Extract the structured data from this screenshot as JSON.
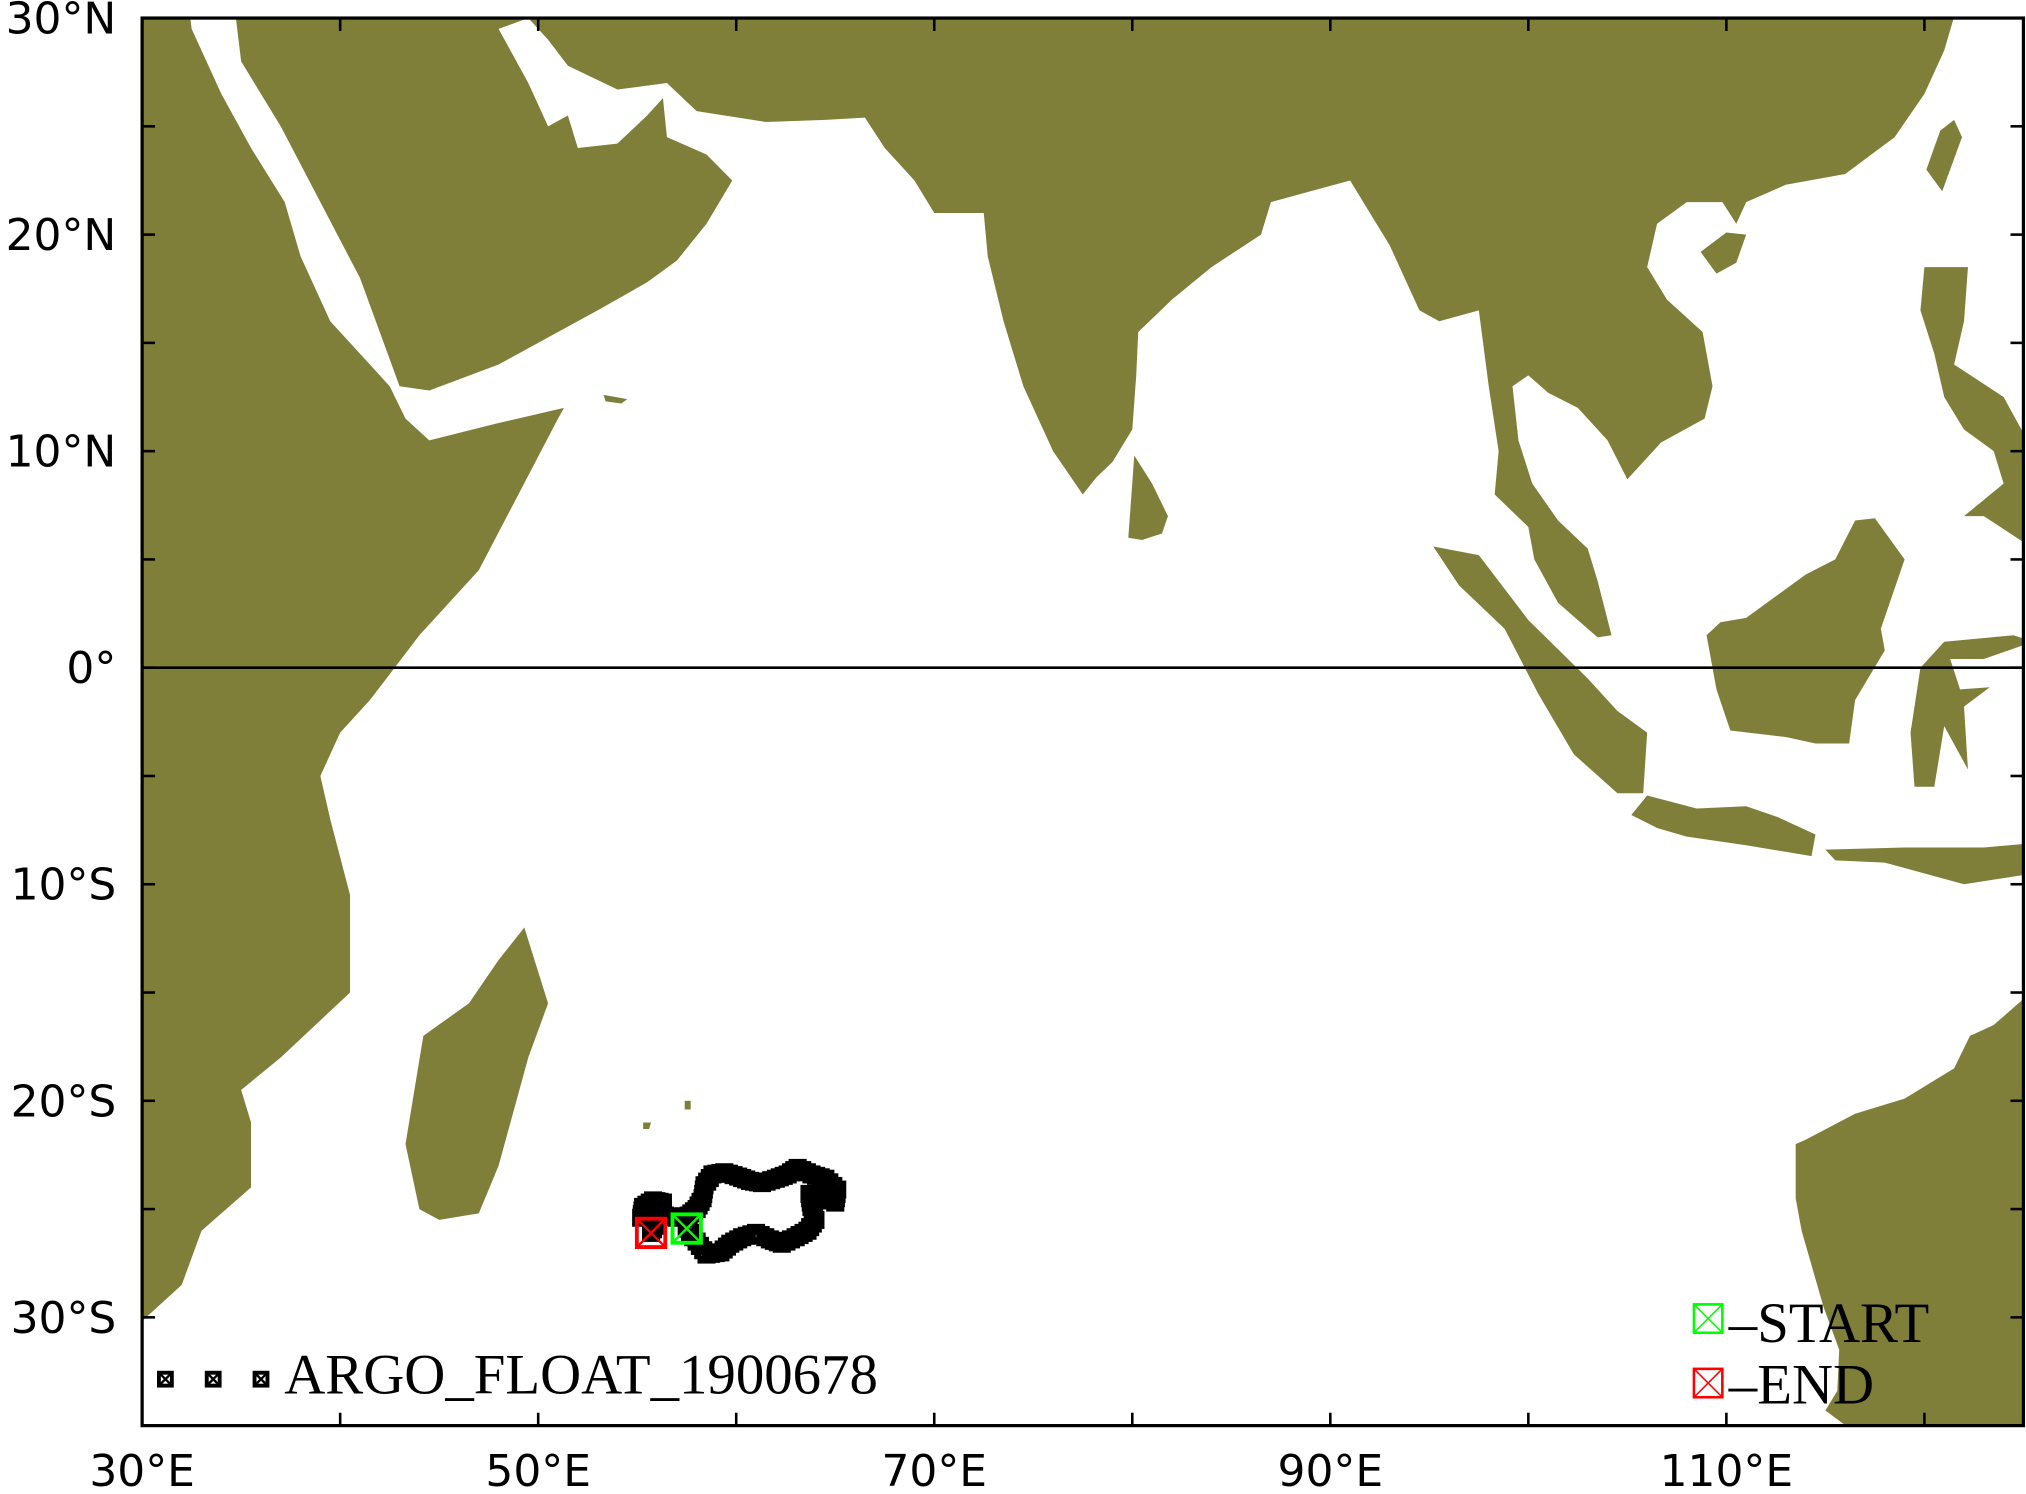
{
  "map": {
    "lon_range": [
      30,
      125
    ],
    "lat_range": [
      -35,
      30
    ],
    "land_color": "#7f7f3a",
    "x_tick_labels": [
      {
        "lon": 30,
        "label": "30°E"
      },
      {
        "lon": 50,
        "label": "50°E"
      },
      {
        "lon": 70,
        "label": "70°E"
      },
      {
        "lon": 90,
        "label": "90°E"
      },
      {
        "lon": 110,
        "label": "110°E"
      }
    ],
    "y_tick_labels": [
      {
        "lat": 30,
        "label": "30°N"
      },
      {
        "lat": 20,
        "label": "20°N"
      },
      {
        "lat": 10,
        "label": "10°N"
      },
      {
        "lat": 0,
        "label": "0°"
      },
      {
        "lat": -10,
        "label": "10°S"
      },
      {
        "lat": -20,
        "label": "20°S"
      },
      {
        "lat": -30,
        "label": "30°S"
      }
    ],
    "equator_line": true
  },
  "track": {
    "name": "ARGO_FLOAT_1900678",
    "color": "#000000",
    "start": {
      "lon": 57.5,
      "lat": -25.9,
      "color": "#00ff00"
    },
    "end": {
      "lon": 55.7,
      "lat": -26.1,
      "color": "#ff0000"
    },
    "points": [
      [
        57.5,
        -25.9
      ],
      [
        58.0,
        -26.5
      ],
      [
        58.5,
        -27.1
      ],
      [
        59.2,
        -27.0
      ],
      [
        59.7,
        -26.6
      ],
      [
        60.3,
        -26.3
      ],
      [
        61.0,
        -26.1
      ],
      [
        61.7,
        -26.4
      ],
      [
        62.3,
        -26.6
      ],
      [
        63.0,
        -26.3
      ],
      [
        63.6,
        -26.0
      ],
      [
        64.0,
        -25.5
      ],
      [
        63.8,
        -24.9
      ],
      [
        63.7,
        -24.3
      ],
      [
        64.4,
        -24.4
      ],
      [
        65.0,
        -24.7
      ],
      [
        65.1,
        -24.1
      ],
      [
        64.5,
        -23.6
      ],
      [
        63.8,
        -23.4
      ],
      [
        63.1,
        -23.1
      ],
      [
        62.6,
        -23.4
      ],
      [
        62.0,
        -23.6
      ],
      [
        61.3,
        -23.8
      ],
      [
        60.7,
        -23.7
      ],
      [
        60.1,
        -23.5
      ],
      [
        59.4,
        -23.3
      ],
      [
        58.8,
        -23.4
      ],
      [
        58.4,
        -23.9
      ],
      [
        58.3,
        -24.5
      ],
      [
        58.0,
        -25.0
      ],
      [
        57.6,
        -25.3
      ],
      [
        57.0,
        -25.4
      ],
      [
        56.4,
        -25.3
      ],
      [
        55.8,
        -25.3
      ],
      [
        55.2,
        -25.4
      ],
      [
        55.3,
        -24.9
      ],
      [
        55.8,
        -24.6
      ],
      [
        56.3,
        -24.7
      ],
      [
        56.0,
        -25.6
      ],
      [
        55.7,
        -26.1
      ]
    ]
  },
  "legend": {
    "track_label": "ARGO_FLOAT_1900678",
    "start_label": "–START",
    "end_label": "–END"
  }
}
